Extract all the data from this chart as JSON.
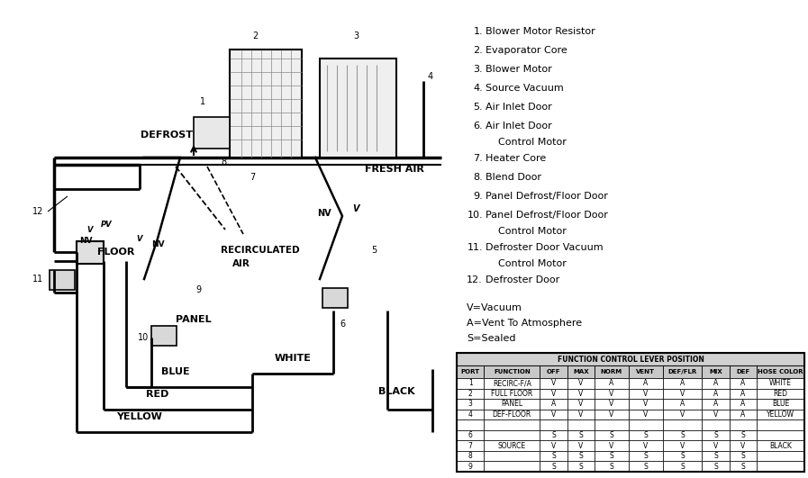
{
  "bg_color": "#ffffff",
  "legend_raw": [
    [
      "1.",
      "Blower Motor Resistor"
    ],
    [
      "2.",
      "Evaporator Core"
    ],
    [
      "3.",
      "Blower Motor"
    ],
    [
      "4.",
      "Source Vacuum"
    ],
    [
      "5.",
      "Air Inlet Door"
    ],
    [
      "6.",
      "Air Inlet Door",
      "Control Motor"
    ],
    [
      "7.",
      "Heater Core"
    ],
    [
      "8.",
      "Blend Door"
    ],
    [
      "9.",
      "Panel Defrost/Floor Door"
    ],
    [
      "10.",
      "Panel Defrost/Floor Door",
      "Control Motor"
    ],
    [
      "11.",
      "Defroster Door Vacuum",
      "Control Motor"
    ],
    [
      "12.",
      "Defroster Door"
    ]
  ],
  "key_lines": [
    "V=Vacuum",
    "A=Vent To Atmosphere",
    "S=Sealed"
  ],
  "table_title": "FUNCTION CONTROL LEVER POSITION",
  "table_headers": [
    "PORT",
    "FUNCTION",
    "OFF",
    "MAX",
    "NORM",
    "VENT",
    "DEF/FLR",
    "MIX",
    "DEF",
    "HOSE COLOR"
  ],
  "table_rows": [
    [
      "1",
      "RECIRC-F/A",
      "V",
      "V",
      "A",
      "A",
      "A",
      "A",
      "A",
      "WHITE"
    ],
    [
      "2",
      "FULL FLOOR",
      "V",
      "V",
      "V",
      "V",
      "V",
      "A",
      "A",
      "RED"
    ],
    [
      "3",
      "PANEL",
      "A",
      "V",
      "V",
      "V",
      "A",
      "A",
      "A",
      "BLUE"
    ],
    [
      "4",
      "DEF-FLOOR",
      "V",
      "V",
      "V",
      "V",
      "V",
      "V",
      "A",
      "YELLOW"
    ],
    [
      "",
      "",
      "",
      "",
      "",
      "",
      "",
      "",
      "",
      ""
    ],
    [
      "6",
      "",
      "S",
      "S",
      "S",
      "S",
      "S",
      "S",
      "S",
      ""
    ],
    [
      "7",
      "SOURCE",
      "V",
      "V",
      "V",
      "V",
      "V",
      "V",
      "V",
      "BLACK"
    ],
    [
      "8",
      "",
      "S",
      "S",
      "S",
      "S",
      "S",
      "S",
      "S",
      ""
    ],
    [
      "9",
      "",
      "S",
      "S",
      "S",
      "S",
      "S",
      "S",
      "S",
      ""
    ]
  ]
}
